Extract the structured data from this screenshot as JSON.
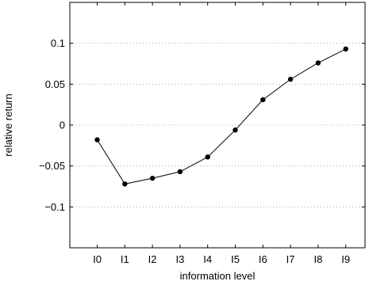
{
  "chart_data": {
    "type": "line",
    "xlabel": "information level",
    "ylabel": "relative return",
    "categories": [
      "I0",
      "I1",
      "I2",
      "I3",
      "I4",
      "I5",
      "I6",
      "I7",
      "I8",
      "I9"
    ],
    "series": [
      {
        "values": [
          -0.018,
          -0.072,
          -0.065,
          -0.057,
          -0.039,
          -0.006,
          0.031,
          0.056,
          0.076,
          0.093
        ],
        "color": "#000000",
        "marker": "filled-circle"
      }
    ],
    "ylim": [
      -0.15,
      0.15
    ],
    "yticks": [
      -0.1,
      -0.05,
      0,
      0.05,
      0.1
    ],
    "ytick_labels": [
      "−0.1",
      "−0.05",
      "0",
      "0.05",
      "0.1"
    ],
    "grid": "horizontal dotted"
  }
}
